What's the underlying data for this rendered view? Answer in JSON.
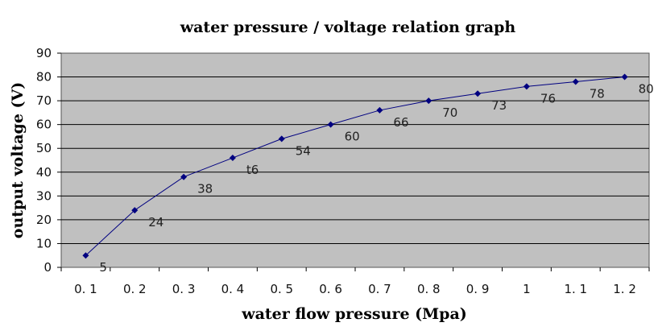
{
  "chart_data": {
    "type": "line",
    "title": "water pressure / voltage  relation graph",
    "xlabel": "water flow pressure (Mpa)",
    "ylabel": "output voltage (V)",
    "categories": [
      "0. 1",
      "0. 2",
      "0. 3",
      "0. 4",
      "0. 5",
      "0. 6",
      "0. 7",
      "0. 8",
      "0. 9",
      "1",
      "1. 1",
      "1. 2"
    ],
    "series": [
      {
        "values": [
          5,
          24,
          38,
          46,
          54,
          60,
          66,
          70,
          73,
          76,
          78,
          80
        ],
        "data_labels": [
          "5",
          "24",
          "38",
          "t6",
          "54",
          "60",
          "66",
          "70",
          "73",
          "76",
          "78",
          "80"
        ],
        "color": "#000080"
      }
    ],
    "ylim": [
      0,
      90
    ],
    "yticks": [
      0,
      10,
      20,
      30,
      40,
      50,
      60,
      70,
      80,
      90
    ],
    "grid": true,
    "plot_background": "#c0c0c0",
    "legend": "none"
  }
}
